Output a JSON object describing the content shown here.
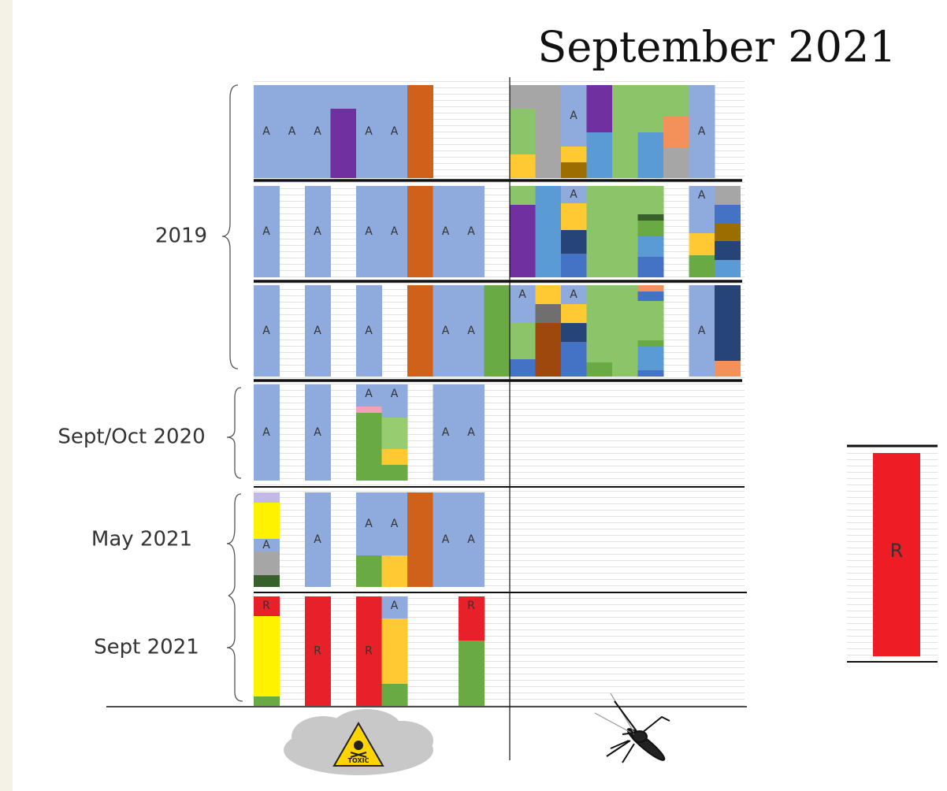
{
  "title": "September 2021",
  "section_labels": [
    "2019",
    "Sept/Oct 2020",
    "May 2021",
    "Sept 2021"
  ],
  "block_letters": [
    "A",
    "A",
    "A",
    "A",
    "A",
    "A",
    "A",
    "A",
    "A",
    "A",
    "A",
    "A",
    "A",
    "A",
    "A",
    "A",
    "A",
    "A",
    "A",
    "A",
    "A",
    "A",
    "A",
    "A",
    "A",
    "A",
    "A",
    "A",
    "A",
    "A",
    "A",
    "A",
    "A",
    "A",
    "A",
    "R",
    "R",
    "R",
    "A",
    "R"
  ],
  "side_letter": "R",
  "icon_text": "TOXIC"
}
